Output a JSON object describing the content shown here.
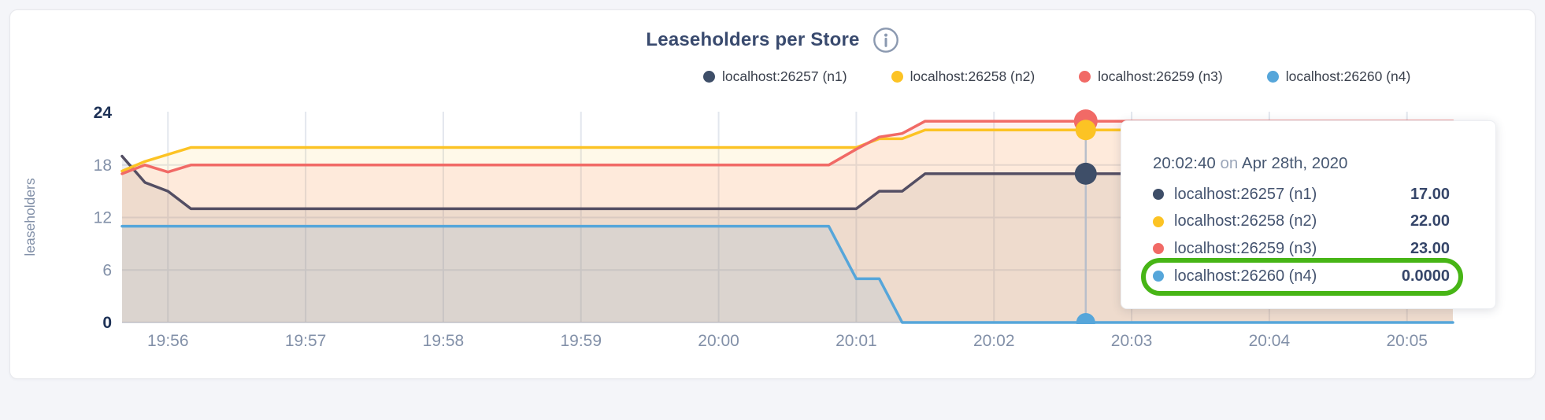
{
  "window": {
    "background": "#f4f5f9",
    "card_background": "#ffffff"
  },
  "header": {
    "title": "Leaseholders per Store"
  },
  "legend": {
    "items": [
      {
        "label": "localhost:26257 (n1)",
        "color": "#3e4e68"
      },
      {
        "label": "localhost:26258 (n2)",
        "color": "#fcc324"
      },
      {
        "label": "localhost:26259 (n3)",
        "color": "#f16a66"
      },
      {
        "label": "localhost:26260 (n4)",
        "color": "#56a6da"
      }
    ]
  },
  "chart_data": {
    "type": "area",
    "title": "Leaseholders per Store",
    "xlabel": "",
    "ylabel": "leaseholders",
    "ylim": [
      0,
      24
    ],
    "y_ticks": [
      0,
      6,
      12,
      18,
      24
    ],
    "grid_y_values": [
      6,
      12,
      18
    ],
    "x_window_seconds": [
      0,
      580
    ],
    "x_start_time": "19:55:40",
    "x_ticks": [
      {
        "t": 20,
        "label": "19:56"
      },
      {
        "t": 80,
        "label": "19:57"
      },
      {
        "t": 140,
        "label": "19:58"
      },
      {
        "t": 200,
        "label": "19:59"
      },
      {
        "t": 260,
        "label": "20:00"
      },
      {
        "t": 320,
        "label": "20:01"
      },
      {
        "t": 380,
        "label": "20:02"
      },
      {
        "t": 440,
        "label": "20:03"
      },
      {
        "t": 500,
        "label": "20:04"
      },
      {
        "t": 560,
        "label": "20:05"
      }
    ],
    "series": [
      {
        "name": "localhost:26257 (n1)",
        "line_color": "#534e63",
        "dot_color": "#3e4e68",
        "fill_opacity": 0.1,
        "dot_radius": 14,
        "points": [
          [
            0,
            19
          ],
          [
            10,
            16
          ],
          [
            20,
            15
          ],
          [
            30,
            13
          ],
          [
            320,
            13
          ],
          [
            330,
            15
          ],
          [
            340,
            15
          ],
          [
            350,
            17
          ],
          [
            580,
            17
          ]
        ]
      },
      {
        "name": "localhost:26258 (n2)",
        "line_color": "#fcc324",
        "dot_color": "#fcc324",
        "fill_opacity": 0.1,
        "dot_radius": 13,
        "points": [
          [
            0,
            17.3
          ],
          [
            10,
            18.4
          ],
          [
            30,
            20
          ],
          [
            320,
            20
          ],
          [
            330,
            21
          ],
          [
            340,
            21
          ],
          [
            350,
            22
          ],
          [
            580,
            22
          ]
        ]
      },
      {
        "name": "localhost:26259 (n3)",
        "line_color": "#f16a66",
        "dot_color": "#f16a66",
        "fill_opacity": 0.1,
        "dot_radius": 15,
        "points": [
          [
            0,
            17
          ],
          [
            10,
            18
          ],
          [
            20,
            17.2
          ],
          [
            30,
            18
          ],
          [
            308,
            18
          ],
          [
            320,
            19.8
          ],
          [
            330,
            21.2
          ],
          [
            340,
            21.6
          ],
          [
            350,
            23
          ],
          [
            580,
            23
          ]
        ]
      },
      {
        "name": "localhost:26260 (n4)",
        "line_color": "#56a6da",
        "dot_color": "#56a6da",
        "fill_opacity": 0.12,
        "dot_radius": 12,
        "points": [
          [
            0,
            11
          ],
          [
            308,
            11
          ],
          [
            320,
            5
          ],
          [
            330,
            5
          ],
          [
            340,
            0
          ],
          [
            580,
            0
          ]
        ]
      }
    ],
    "hover": {
      "t": 420,
      "time_label": "20:02:40",
      "values": [
        17,
        22,
        23,
        0
      ]
    },
    "legend_position": "top-right",
    "grid": true
  },
  "tooltip": {
    "time": "20:02:40",
    "connector": "on",
    "date": "Apr 28th, 2020",
    "rows": [
      {
        "series": "localhost:26257 (n1)",
        "value": "17.00",
        "color": "#3e4e68",
        "highlighted": false
      },
      {
        "series": "localhost:26258 (n2)",
        "value": "22.00",
        "color": "#fcc324",
        "highlighted": false
      },
      {
        "series": "localhost:26259 (n3)",
        "value": "23.00",
        "color": "#f16a66",
        "highlighted": false
      },
      {
        "series": "localhost:26260 (n4)",
        "value": "0.0000",
        "color": "#56a6da",
        "highlighted": true
      }
    ]
  },
  "annotation": {
    "highlight_color": "#47b516"
  },
  "axis_style": {
    "tick_color": "#8290a8",
    "bold_tick_color": "#1d3156",
    "grid_color": "#e3e7ee",
    "hover_line_color": "#b9bfca"
  }
}
